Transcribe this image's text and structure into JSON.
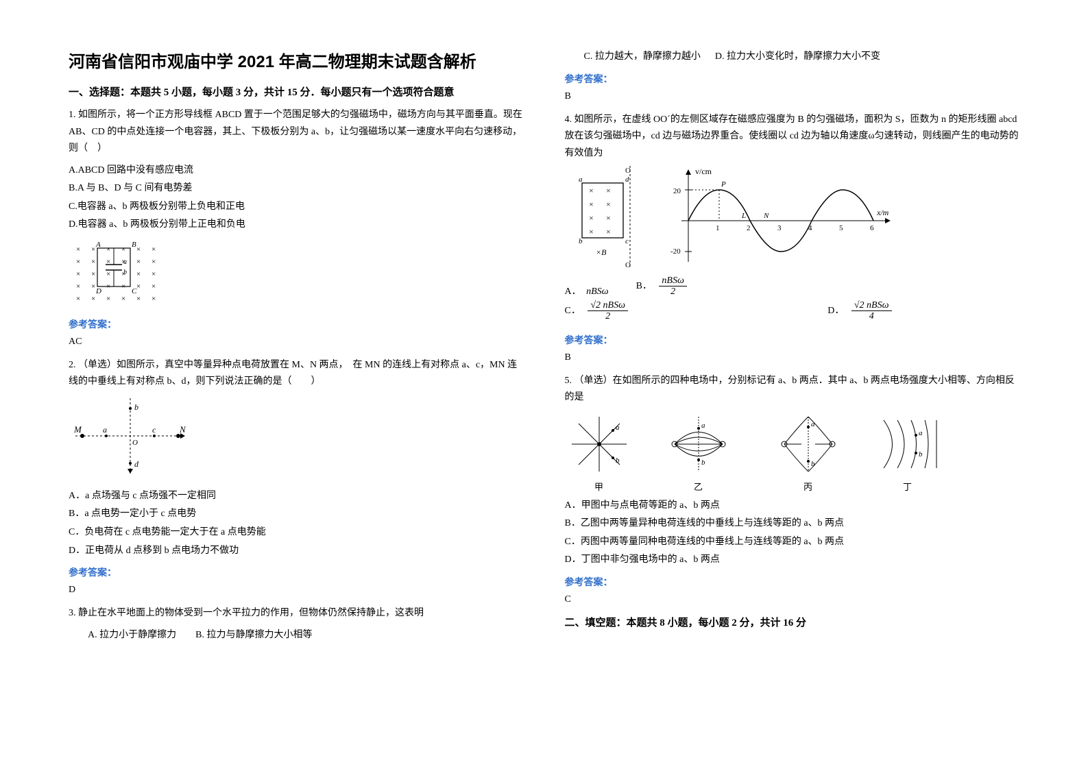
{
  "title": "河南省信阳市观庙中学 2021 年高二物理期末试题含解析",
  "section1_header": "一、选择题：本题共 5 小题，每小题 3 分，共计 15 分．每小题只有一个选项符合题意",
  "q1": {
    "stem": "1. 如图所示，将一个正方形导线框 ABCD 置于一个范围足够大的匀强磁场中，磁场方向与其平面垂直。现在 AB、CD 的中点处连接一个电容器，其上、下极板分别为 a、b，让匀强磁场以某一速度水平向右匀速移动，则（　）",
    "optA": "A.ABCD 回路中没有感应电流",
    "optB": "B.A 与 B、D 与 C 间有电势差",
    "optC": "C.电容器 a、b 两极板分别带上负电和正电",
    "optD": "D.电容器 a、b 两极板分别带上正电和负电",
    "answer_label": "参考答案：",
    "answer": "AC"
  },
  "q2": {
    "stem": "2. （单选）如图所示，真空中等量异种点电荷放置在 M、N 两点，　在 MN 的连线上有对称点 a、c，MN 连线的中垂线上有对称点 b、d，则下列说法正确的是（　　）",
    "optA": "A．a 点场强与 c 点场强不一定相同",
    "optB": "B．a 点电势一定小于 c 点电势",
    "optC": "C．负电荷在 c 点电势能一定大于在 a 点电势能",
    "optD": "D．正电荷从 d 点移到 b 点电场力不做功",
    "answer_label": "参考答案：",
    "answer": "D"
  },
  "q3": {
    "stem": "3. 静止在水平地面上的物体受到一个水平拉力的作用，但物体仍然保持静止，这表明",
    "optA": "A. 拉力小于静摩擦力",
    "optB": "B. 拉力与静摩擦力大小相等",
    "optC": "C. 拉力越大，静摩擦力越小",
    "optD": "D. 拉力大小变化时，静摩擦力大小不变",
    "answer_label": "参考答案：",
    "answer": "B"
  },
  "q4": {
    "stem": "4. 如图所示，在虚线 OO´的左侧区域存在磁感应强度为 B 的匀强磁场，面积为 S，匝数为 n 的矩形线圈 abcd 放在该匀强磁场中，cd 边与磁场边界重合。使线圈以 cd 边为轴以角速度ω匀速转动，则线圈产生的电动势的有效值为",
    "optA_label": "A．",
    "optA_val": "nBSω",
    "optB_label": "B．",
    "optB_num": "nBSω",
    "optB_den": "2",
    "optC_label": "C．",
    "optC_num": "√2 nBSω",
    "optC_den": "2",
    "optD_label": "D．",
    "optD_num": "√2 nBSω",
    "optD_den": "4",
    "answer_label": "参考答案：",
    "answer": "B"
  },
  "q5": {
    "stem": "5. （单选）在如图所示的四种电场中，分别标记有 a、b 两点．其中 a、b 两点电场强度大小相等、方向相反的是",
    "cap1": "甲",
    "cap2": "乙",
    "cap3": "丙",
    "cap4": "丁",
    "optA": "A．甲图中与点电荷等距的 a、b 两点",
    "optB": "B．乙图中两等量异种电荷连线的中垂线上与连线等距的 a、b 两点",
    "optC": "C．丙图中两等量同种电荷连线的中垂线上与连线等距的 a、b 两点",
    "optD": "D．丁图中非匀强电场中的 a、b 两点",
    "answer_label": "参考答案：",
    "answer": "C"
  },
  "section2_header": "二、填空题：本题共 8 小题，每小题 2 分，共计 16 分",
  "figures": {
    "q1": {
      "grid_color": "#000000",
      "cross_size": 7,
      "cols": 6,
      "rows": 5,
      "labels": {
        "A": "A",
        "B": "B",
        "C": "C",
        "D": "D",
        "a": "a",
        "b": "b"
      }
    },
    "q2": {
      "labels": {
        "M": "M",
        "N": "N",
        "a": "a",
        "b": "b",
        "c": "c",
        "d": "d",
        "O": "O"
      },
      "stroke": "#000000"
    },
    "q4_left": {
      "labels": {
        "a": "a",
        "b": "b",
        "c": "c",
        "d": "d",
        "B": "B",
        "O": "O",
        "Op": "O"
      },
      "cross_rows": 5,
      "cross_cols": 2
    },
    "q4_right": {
      "ylabel": "v/cm",
      "xlabel": "x/m",
      "ymax_label": "20",
      "ymin_label": "-20",
      "xticks": [
        "1",
        "2",
        "3",
        "4",
        "5",
        "6"
      ],
      "points": {
        "P": "P",
        "L": "L",
        "N": "N"
      },
      "stroke": "#000000"
    },
    "q5_stroke": "#000000"
  }
}
